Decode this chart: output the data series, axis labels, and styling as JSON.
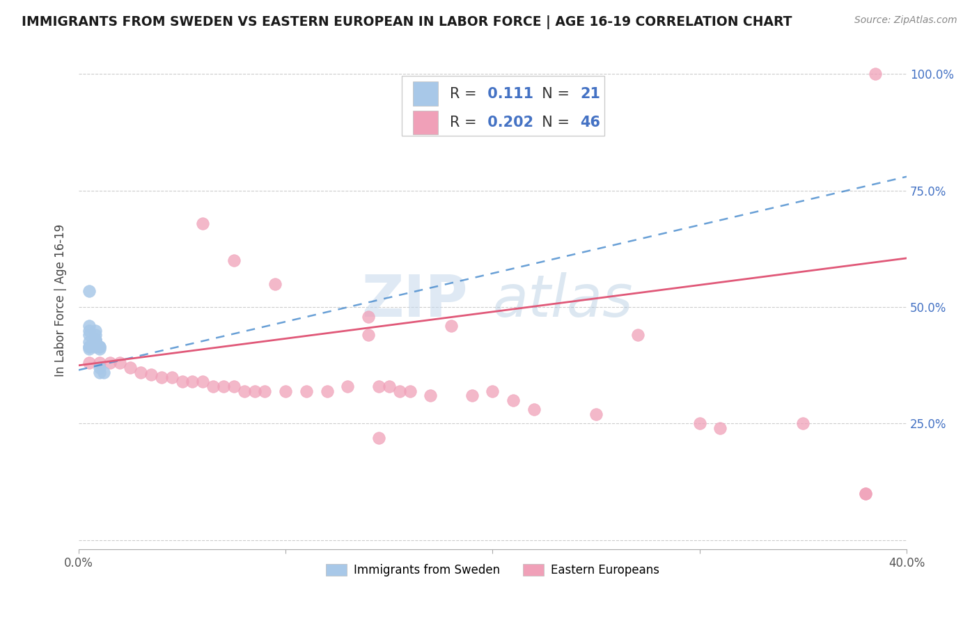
{
  "title": "IMMIGRANTS FROM SWEDEN VS EASTERN EUROPEAN IN LABOR FORCE | AGE 16-19 CORRELATION CHART",
  "source": "Source: ZipAtlas.com",
  "ylabel": "In Labor Force | Age 16-19",
  "xlim": [
    0.0,
    0.4
  ],
  "ylim": [
    -0.02,
    1.05
  ],
  "ytick_vals": [
    0.0,
    0.25,
    0.5,
    0.75,
    1.0
  ],
  "ytick_labels": [
    "",
    "25.0%",
    "50.0%",
    "75.0%",
    "100.0%"
  ],
  "xtick_vals": [
    0.0,
    0.1,
    0.2,
    0.3,
    0.4
  ],
  "xtick_labels": [
    "0.0%",
    "",
    "",
    "",
    "40.0%"
  ],
  "sweden_color": "#a8c8e8",
  "eastern_color": "#f0a0b8",
  "sweden_line_color": "#4488cc",
  "eastern_line_color": "#e05878",
  "sweden_R": 0.111,
  "sweden_N": 21,
  "eastern_R": 0.202,
  "eastern_N": 46,
  "sweden_x": [
    0.005,
    0.005,
    0.005,
    0.005,
    0.005,
    0.005,
    0.005,
    0.005,
    0.008,
    0.008,
    0.008,
    0.008,
    0.008,
    0.008,
    0.008,
    0.01,
    0.01,
    0.01,
    0.01,
    0.01,
    0.012
  ],
  "sweden_y": [
    0.535,
    0.46,
    0.45,
    0.44,
    0.425,
    0.415,
    0.415,
    0.41,
    0.45,
    0.44,
    0.43,
    0.43,
    0.425,
    0.42,
    0.415,
    0.415,
    0.415,
    0.41,
    0.37,
    0.36,
    0.36
  ],
  "eastern_x": [
    0.005,
    0.01,
    0.015,
    0.02,
    0.025,
    0.03,
    0.035,
    0.04,
    0.045,
    0.05,
    0.055,
    0.06,
    0.065,
    0.07,
    0.075,
    0.08,
    0.085,
    0.09,
    0.1,
    0.11,
    0.12,
    0.13,
    0.14,
    0.145,
    0.15,
    0.155,
    0.16,
    0.17,
    0.18,
    0.19,
    0.2,
    0.21,
    0.22,
    0.25,
    0.27,
    0.3,
    0.31,
    0.35,
    0.38,
    0.38,
    0.06,
    0.075,
    0.095,
    0.14,
    0.145,
    0.385
  ],
  "eastern_y": [
    0.38,
    0.38,
    0.38,
    0.38,
    0.37,
    0.36,
    0.355,
    0.35,
    0.35,
    0.34,
    0.34,
    0.34,
    0.33,
    0.33,
    0.33,
    0.32,
    0.32,
    0.32,
    0.32,
    0.32,
    0.32,
    0.33,
    0.44,
    0.33,
    0.33,
    0.32,
    0.32,
    0.31,
    0.46,
    0.31,
    0.32,
    0.3,
    0.28,
    0.27,
    0.44,
    0.25,
    0.24,
    0.25,
    0.1,
    0.1,
    0.68,
    0.6,
    0.55,
    0.48,
    0.22,
    1.0
  ]
}
